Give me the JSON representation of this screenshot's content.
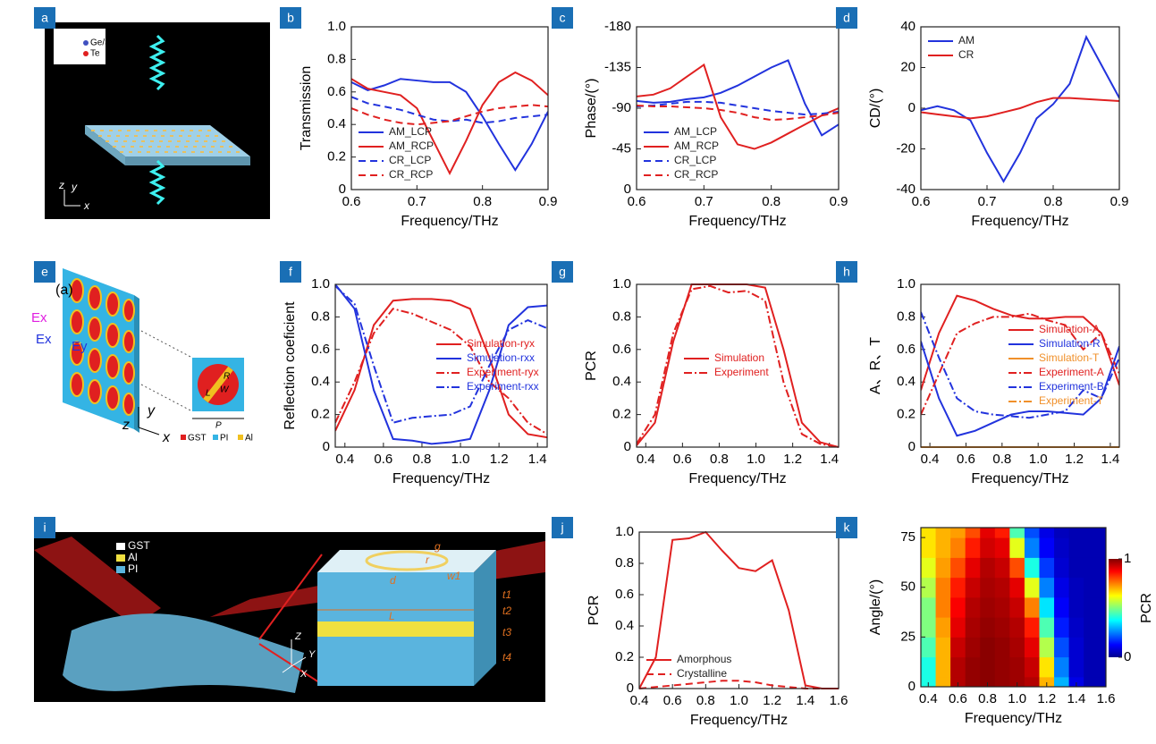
{
  "illustrations": [
    {
      "panel": "a",
      "labels": [
        "Ge/Sb",
        "Te",
        "z",
        "y",
        "x"
      ]
    },
    {
      "panel": "e",
      "labels": [
        "(a)",
        "Ex",
        "Ex",
        "Ey",
        "R",
        "W",
        "L",
        "P",
        "GST",
        "PI",
        "Al",
        "y",
        "z",
        "x"
      ]
    },
    {
      "panel": "i",
      "labels": [
        "GST",
        "Al",
        "PI",
        "r",
        "g",
        "w1",
        "d",
        "t1",
        "t2",
        "t3",
        "t4",
        "L",
        "Z",
        "Y",
        "X"
      ]
    }
  ],
  "chart_data": [
    {
      "type": "line",
      "panel": "b",
      "xlabel": "Frequency/THz",
      "ylabel": "Transmission",
      "xlim": [
        0.6,
        0.9
      ],
      "xticks": [
        0.6,
        0.7,
        0.8,
        0.9
      ],
      "ylim": [
        0,
        1
      ],
      "yticks": [
        0,
        0.2,
        0.4,
        0.6,
        0.8,
        {
          "value": 1,
          "label": "1.0"
        }
      ],
      "legend": "lower left",
      "legend_text_colored": false,
      "x": [
        0.6,
        0.625,
        0.65,
        0.675,
        0.7,
        0.725,
        0.75,
        0.775,
        0.8,
        0.825,
        0.85,
        0.875,
        0.9
      ],
      "series": [
        {
          "name": "AM_LCP",
          "color": "#2233dd",
          "dash": "solid",
          "values": [
            0.66,
            0.61,
            0.64,
            0.68,
            0.67,
            0.66,
            0.66,
            0.6,
            0.45,
            0.28,
            0.12,
            0.28,
            0.48
          ]
        },
        {
          "name": "AM_RCP",
          "color": "#e02020",
          "dash": "solid",
          "values": [
            0.68,
            0.62,
            0.6,
            0.58,
            0.5,
            0.3,
            0.1,
            0.3,
            0.52,
            0.66,
            0.72,
            0.67,
            0.58
          ]
        },
        {
          "name": "CR_LCP",
          "color": "#2233dd",
          "dash": "dash",
          "values": [
            0.57,
            0.53,
            0.51,
            0.49,
            0.46,
            0.43,
            0.42,
            0.43,
            0.41,
            0.42,
            0.44,
            0.45,
            0.46
          ]
        },
        {
          "name": "CR_RCP",
          "color": "#e02020",
          "dash": "dash",
          "values": [
            0.5,
            0.46,
            0.43,
            0.41,
            0.4,
            0.41,
            0.42,
            0.45,
            0.48,
            0.5,
            0.51,
            0.52,
            0.51
          ]
        }
      ]
    },
    {
      "type": "line",
      "panel": "c",
      "xlabel": "Frequency/THz",
      "ylabel": "Phase/(°)",
      "xlim": [
        0.6,
        0.9
      ],
      "xticks": [
        0.6,
        0.7,
        0.8,
        0.9
      ],
      "ylim": [
        0,
        -180
      ],
      "yticks": [
        0,
        -45,
        -90,
        -135,
        -180
      ],
      "legend": "lower left",
      "legend_text_colored": false,
      "x": [
        0.6,
        0.625,
        0.65,
        0.675,
        0.7,
        0.725,
        0.75,
        0.775,
        0.8,
        0.825,
        0.85,
        0.875,
        0.9
      ],
      "series": [
        {
          "name": "AM_LCP",
          "color": "#2233dd",
          "dash": "solid",
          "values": [
            -98,
            -96,
            -97,
            -100,
            -102,
            -107,
            -115,
            -125,
            -135,
            -143,
            -95,
            -60,
            -72
          ]
        },
        {
          "name": "AM_RCP",
          "color": "#e02020",
          "dash": "solid",
          "values": [
            -103,
            -105,
            -112,
            -125,
            -138,
            -80,
            -50,
            -45,
            -52,
            -62,
            -72,
            -82,
            -90
          ]
        },
        {
          "name": "CR_LCP",
          "color": "#2233dd",
          "dash": "dash",
          "values": [
            -92,
            -93,
            -95,
            -97,
            -97,
            -96,
            -93,
            -90,
            -87,
            -85,
            -83,
            -84,
            -86
          ]
        },
        {
          "name": "CR_RCP",
          "color": "#e02020",
          "dash": "dash",
          "values": [
            -93,
            -92,
            -92,
            -91,
            -90,
            -88,
            -85,
            -80,
            -77,
            -78,
            -80,
            -82,
            -85
          ]
        }
      ]
    },
    {
      "type": "line",
      "panel": "d",
      "xlabel": "Frequency/THz",
      "ylabel": "CD/(°)",
      "xlim": [
        0.6,
        0.9
      ],
      "xticks": [
        0.6,
        0.7,
        0.8,
        0.9
      ],
      "ylim": [
        -40,
        40
      ],
      "yticks": [
        -40,
        -20,
        0,
        20,
        40
      ],
      "legend": "upper left",
      "legend_text_colored": false,
      "x": [
        0.6,
        0.625,
        0.65,
        0.675,
        0.7,
        0.725,
        0.75,
        0.775,
        0.8,
        0.825,
        0.85,
        0.875,
        0.9
      ],
      "series": [
        {
          "name": "AM",
          "color": "#2233dd",
          "dash": "solid",
          "values": [
            -1,
            1,
            -1,
            -6,
            -22,
            -36,
            -22,
            -5,
            2,
            12,
            35,
            20,
            5
          ]
        },
        {
          "name": "CR",
          "color": "#e02020",
          "dash": "solid",
          "values": [
            -2,
            -3,
            -4,
            -5,
            -4,
            -2,
            0,
            3,
            5,
            5,
            4.5,
            4,
            3.5
          ]
        }
      ]
    },
    {
      "type": "line",
      "panel": "f",
      "xlabel": "Frequency/THz",
      "ylabel": "Reflection coeficient",
      "xlim": [
        0.35,
        1.45
      ],
      "xticks": [
        0.4,
        0.6,
        0.8,
        {
          "value": 1,
          "label": "1.0"
        },
        1.2,
        1.4
      ],
      "ylim": [
        0,
        1
      ],
      "yticks": [
        0,
        0.2,
        0.4,
        0.6,
        0.8,
        {
          "value": 1,
          "label": "1.0"
        }
      ],
      "legend": "center right",
      "legend_text_colored": true,
      "x": [
        0.35,
        0.45,
        0.55,
        0.65,
        0.75,
        0.85,
        0.95,
        1.05,
        1.15,
        1.25,
        1.35,
        1.45
      ],
      "series": [
        {
          "name": "Simulation-ryx",
          "color": "#e02020",
          "dash": "solid",
          "values": [
            0.1,
            0.35,
            0.75,
            0.9,
            0.91,
            0.91,
            0.9,
            0.85,
            0.55,
            0.2,
            0.08,
            0.06
          ]
        },
        {
          "name": "Simulation-rxx",
          "color": "#2233dd",
          "dash": "solid",
          "values": [
            1.0,
            0.85,
            0.35,
            0.05,
            0.04,
            0.02,
            0.03,
            0.05,
            0.35,
            0.75,
            0.86,
            0.87
          ]
        },
        {
          "name": "Experiment-ryx",
          "color": "#e02020",
          "dash": "dashdot",
          "values": [
            0.15,
            0.4,
            0.7,
            0.85,
            0.82,
            0.77,
            0.72,
            0.62,
            0.4,
            0.3,
            0.15,
            0.08
          ]
        },
        {
          "name": "Experiment-rxx",
          "color": "#2233dd",
          "dash": "dashdot",
          "values": [
            0.99,
            0.88,
            0.5,
            0.15,
            0.18,
            0.19,
            0.2,
            0.25,
            0.5,
            0.72,
            0.78,
            0.73
          ]
        }
      ]
    },
    {
      "type": "line",
      "panel": "g",
      "xlabel": "Frequency/THz",
      "ylabel": "PCR",
      "xlim": [
        0.35,
        1.45
      ],
      "xticks": [
        0.4,
        0.6,
        0.8,
        {
          "value": 1,
          "label": "1.0"
        },
        1.2,
        1.4
      ],
      "ylim": [
        0,
        1
      ],
      "yticks": [
        0,
        0.2,
        0.4,
        0.6,
        0.8,
        {
          "value": 1,
          "label": "1.0"
        }
      ],
      "legend": "center",
      "legend_text_colored": true,
      "x": [
        0.35,
        0.45,
        0.55,
        0.65,
        0.75,
        0.85,
        0.95,
        1.05,
        1.15,
        1.25,
        1.35,
        1.45
      ],
      "series": [
        {
          "name": "Simulation",
          "color": "#e02020",
          "dash": "solid",
          "values": [
            0.01,
            0.15,
            0.65,
            1.0,
            1.0,
            1.0,
            1.0,
            0.98,
            0.6,
            0.15,
            0.03,
            0.0
          ]
        },
        {
          "name": "Experiment",
          "color": "#e02020",
          "dash": "dashdot",
          "values": [
            0.02,
            0.2,
            0.7,
            0.97,
            0.99,
            0.95,
            0.96,
            0.9,
            0.4,
            0.08,
            0.02,
            0.0
          ]
        }
      ]
    },
    {
      "type": "line",
      "panel": "h",
      "xlabel": "Frequency/THz",
      "ylabel": "A、R、T",
      "xlim": [
        0.35,
        1.45
      ],
      "xticks": [
        0.4,
        0.6,
        0.8,
        {
          "value": 1,
          "label": "1.0"
        },
        1.2,
        1.4
      ],
      "ylim": [
        0,
        1
      ],
      "yticks": [
        0,
        0.2,
        0.4,
        0.6,
        0.8,
        {
          "value": 1,
          "label": "1.0"
        }
      ],
      "legend": "center right",
      "legend_text_colored": true,
      "x": [
        0.35,
        0.45,
        0.55,
        0.65,
        0.75,
        0.85,
        0.95,
        1.05,
        1.15,
        1.25,
        1.35,
        1.45
      ],
      "series": [
        {
          "name": "Simulation-A",
          "color": "#e02020",
          "dash": "solid",
          "values": [
            0.35,
            0.7,
            0.93,
            0.9,
            0.85,
            0.81,
            0.79,
            0.79,
            0.8,
            0.8,
            0.7,
            0.38
          ]
        },
        {
          "name": "Simulation-R",
          "color": "#2233dd",
          "dash": "solid",
          "values": [
            0.65,
            0.3,
            0.07,
            0.1,
            0.15,
            0.2,
            0.22,
            0.22,
            0.21,
            0.2,
            0.3,
            0.62
          ]
        },
        {
          "name": "Simulation-T",
          "color": "#f0902a",
          "dash": "solid",
          "values": [
            0,
            0,
            0,
            0,
            0,
            0,
            0,
            0,
            0,
            0,
            0,
            0
          ]
        },
        {
          "name": "Experiment-A",
          "color": "#e02020",
          "dash": "dashdot",
          "values": [
            0.2,
            0.45,
            0.7,
            0.76,
            0.8,
            0.8,
            0.82,
            0.78,
            0.75,
            0.6,
            0.7,
            0.45
          ]
        },
        {
          "name": "Experiment-B",
          "color": "#2233dd",
          "dash": "dashdot",
          "values": [
            0.83,
            0.55,
            0.3,
            0.22,
            0.2,
            0.19,
            0.18,
            0.2,
            0.22,
            0.35,
            0.3,
            0.55
          ]
        },
        {
          "name": "Experiment-T",
          "color": "#f0902a",
          "dash": "dashdot",
          "values": [
            0,
            0,
            0,
            0,
            0,
            0,
            0,
            0,
            0,
            0,
            0,
            0
          ]
        }
      ]
    },
    {
      "type": "line",
      "panel": "j",
      "xlabel": "Frequency/THz",
      "ylabel": "PCR",
      "xlim": [
        0.4,
        1.6
      ],
      "xticks": [
        0.4,
        0.6,
        0.8,
        {
          "value": 1,
          "label": "1.0"
        },
        1.2,
        1.4,
        1.6
      ],
      "ylim": [
        0,
        1
      ],
      "yticks": [
        0,
        0.2,
        0.4,
        0.6,
        0.8,
        {
          "value": 1,
          "label": "1.0"
        }
      ],
      "legend": "lower left",
      "legend_text_colored": false,
      "x": [
        0.4,
        0.5,
        0.6,
        0.7,
        0.8,
        0.9,
        1.0,
        1.1,
        1.2,
        1.3,
        1.4,
        1.5,
        1.6
      ],
      "series": [
        {
          "name": "Amorphous",
          "color": "#e02020",
          "dash": "solid",
          "values": [
            0,
            0.2,
            0.95,
            0.96,
            1.0,
            0.88,
            0.77,
            0.75,
            0.82,
            0.5,
            0.02,
            0,
            0
          ]
        },
        {
          "name": "Crystalline",
          "color": "#e02020",
          "dash": "dash",
          "values": [
            0,
            0.01,
            0.02,
            0.03,
            0.04,
            0.05,
            0.05,
            0.04,
            0.02,
            0.01,
            0,
            0,
            0
          ]
        }
      ]
    },
    {
      "type": "heatmap",
      "panel": "k",
      "xlabel": "Frequency/THz",
      "ylabel": "Angle/(°)",
      "zlabel": "PCR",
      "xlim": [
        0.35,
        1.6
      ],
      "xticks": [
        0.4,
        0.6,
        0.8,
        {
          "value": 1,
          "label": "1.0"
        },
        1.2,
        1.4,
        1.6
      ],
      "ylim": [
        0,
        80
      ],
      "yticks": [
        0,
        25,
        50,
        75
      ],
      "zlim": [
        0,
        1
      ],
      "zticks": [
        0,
        1
      ],
      "x": [
        0.4,
        0.5,
        0.6,
        0.7,
        0.8,
        0.9,
        1.0,
        1.1,
        1.2,
        1.3,
        1.4,
        1.5,
        1.6
      ],
      "y": [
        0,
        10,
        20,
        30,
        40,
        50,
        60,
        70,
        80
      ],
      "z": [
        [
          0.4,
          0.7,
          0.95,
          0.98,
          0.99,
          0.98,
          0.97,
          0.95,
          0.7,
          0.3,
          0.1,
          0.05,
          0.05
        ],
        [
          0.4,
          0.7,
          0.95,
          0.98,
          0.99,
          0.98,
          0.97,
          0.93,
          0.65,
          0.25,
          0.08,
          0.05,
          0.05
        ],
        [
          0.45,
          0.7,
          0.93,
          0.97,
          0.99,
          0.98,
          0.96,
          0.9,
          0.55,
          0.2,
          0.08,
          0.05,
          0.05
        ],
        [
          0.5,
          0.72,
          0.9,
          0.96,
          0.98,
          0.97,
          0.95,
          0.85,
          0.45,
          0.15,
          0.07,
          0.05,
          0.05
        ],
        [
          0.5,
          0.75,
          0.88,
          0.95,
          0.97,
          0.96,
          0.93,
          0.75,
          0.35,
          0.12,
          0.06,
          0.05,
          0.05
        ],
        [
          0.55,
          0.75,
          0.85,
          0.93,
          0.96,
          0.95,
          0.9,
          0.6,
          0.25,
          0.1,
          0.06,
          0.05,
          0.05
        ],
        [
          0.6,
          0.72,
          0.8,
          0.9,
          0.95,
          0.93,
          0.8,
          0.4,
          0.18,
          0.08,
          0.05,
          0.05,
          0.05
        ],
        [
          0.65,
          0.7,
          0.75,
          0.85,
          0.92,
          0.9,
          0.6,
          0.25,
          0.12,
          0.07,
          0.05,
          0.05,
          0.05
        ],
        [
          0.65,
          0.7,
          0.72,
          0.8,
          0.9,
          0.85,
          0.45,
          0.2,
          0.1,
          0.06,
          0.05,
          0.05,
          0.05
        ]
      ]
    }
  ]
}
